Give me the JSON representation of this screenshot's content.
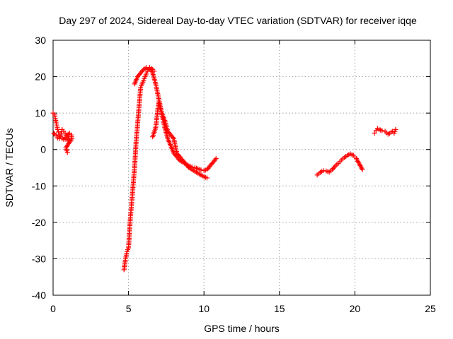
{
  "chart_data": {
    "type": "scatter",
    "title": "Day 297 of 2024, Sidereal Day-to-day VTEC variation (SDTVAR) for receiver iqqe",
    "xlabel": "GPS time / hours",
    "ylabel": "SDTVAR / TECUs",
    "xlim": [
      0,
      25
    ],
    "ylim": [
      -40,
      30
    ],
    "xticks": [
      0,
      5,
      10,
      15,
      20,
      25
    ],
    "yticks": [
      -40,
      -30,
      -20,
      -10,
      0,
      10,
      20,
      30
    ],
    "grid": true,
    "marker": "+",
    "color": "#ff0000",
    "series": [
      {
        "name": "start-wobble",
        "x": [
          0.0,
          0.1,
          0.15,
          0.2,
          0.25,
          0.3,
          0.35,
          0.4,
          0.45
        ],
        "y": [
          10,
          9.5,
          8.5,
          7.5,
          6.5,
          5.5,
          4.8,
          4.0,
          3.5
        ]
      },
      {
        "name": "early-cluster",
        "x": [
          0.05,
          0.1,
          0.2,
          0.3,
          0.4,
          0.5,
          0.55,
          0.6,
          0.7,
          0.8,
          0.9,
          1.0,
          1.05,
          1.1,
          0.6,
          0.7,
          0.8,
          0.9,
          1.0,
          1.1,
          1.2,
          1.25,
          0.85,
          0.95
        ],
        "y": [
          4.5,
          4.2,
          3.8,
          3.2,
          3.0,
          3.5,
          4.5,
          5.5,
          5.0,
          4.5,
          4.0,
          3.5,
          3.0,
          2.5,
          3.0,
          2.8,
          3.3,
          3.8,
          4.2,
          4.5,
          4.0,
          3.0,
          0.5,
          -0.8
        ]
      },
      {
        "name": "rise-and-peak",
        "x": [
          4.7,
          4.8,
          4.9,
          5.0,
          5.1,
          5.2,
          5.3,
          5.4,
          5.5,
          5.6,
          5.7,
          5.8,
          5.9,
          6.0,
          6.1,
          6.2,
          6.3,
          6.4,
          6.5,
          6.6,
          6.7
        ],
        "y": [
          -33,
          -30,
          -28,
          -27,
          -20,
          -15,
          -10,
          -5,
          2,
          7,
          12,
          17,
          18,
          19,
          20,
          21,
          22,
          22.5,
          22.3,
          22.0,
          21.5
        ]
      },
      {
        "name": "fall-from-peak",
        "x": [
          5.4,
          5.6,
          5.8,
          6.0,
          6.2,
          6.4,
          6.6,
          6.8,
          7.0,
          7.2,
          7.4,
          7.6,
          7.8,
          8.0,
          8.2,
          8.4,
          8.6,
          8.8,
          9.0,
          9.2,
          9.4,
          9.6,
          9.8,
          10.0,
          10.2,
          10.4,
          10.6,
          10.8
        ],
        "y": [
          18,
          20,
          21,
          22,
          22.5,
          22.3,
          21,
          18,
          14,
          10,
          6,
          3,
          1,
          -1,
          -2,
          -3,
          -3.5,
          -4,
          -4.5,
          -4.8,
          -5.0,
          -5.3,
          -5.6,
          -5.8,
          -5.5,
          -4.5,
          -3.5,
          -2.5
        ]
      },
      {
        "name": "scatter-branch",
        "x": [
          6.6,
          6.8,
          7.0,
          7.2,
          7.4,
          7.6,
          7.8,
          8.0,
          8.2,
          8.4,
          8.6,
          8.8,
          9.0,
          9.2,
          9.4,
          9.6,
          9.8,
          10.0,
          10.2
        ],
        "y": [
          3.5,
          6.0,
          13.0,
          10.0,
          8.0,
          5.0,
          4.0,
          3.0,
          -1.0,
          -2.0,
          -3.0,
          -4.0,
          -5.0,
          -5.5,
          -6.0,
          -6.5,
          -7.0,
          -7.5,
          -7.8
        ]
      },
      {
        "name": "evening-arc",
        "x": [
          17.5,
          17.7,
          17.9,
          18.1,
          18.3,
          18.5,
          18.7,
          18.9,
          19.1,
          19.3,
          19.5,
          19.7,
          19.9,
          20.1,
          20.3,
          20.5
        ],
        "y": [
          -7.0,
          -6.3,
          -5.8,
          -5.9,
          -6.2,
          -5.5,
          -4.5,
          -3.8,
          -2.9,
          -2.2,
          -1.6,
          -1.2,
          -1.6,
          -2.5,
          -4.0,
          -5.5
        ]
      },
      {
        "name": "late-cluster",
        "x": [
          21.3,
          21.4,
          21.5,
          21.6,
          21.8,
          22.0,
          22.1,
          22.2,
          22.3,
          22.4,
          22.5,
          22.6,
          22.7
        ],
        "y": [
          4.5,
          5.2,
          5.8,
          5.5,
          5.2,
          5.0,
          4.6,
          4.2,
          4.4,
          4.8,
          5.0,
          4.5,
          5.5
        ]
      }
    ]
  }
}
